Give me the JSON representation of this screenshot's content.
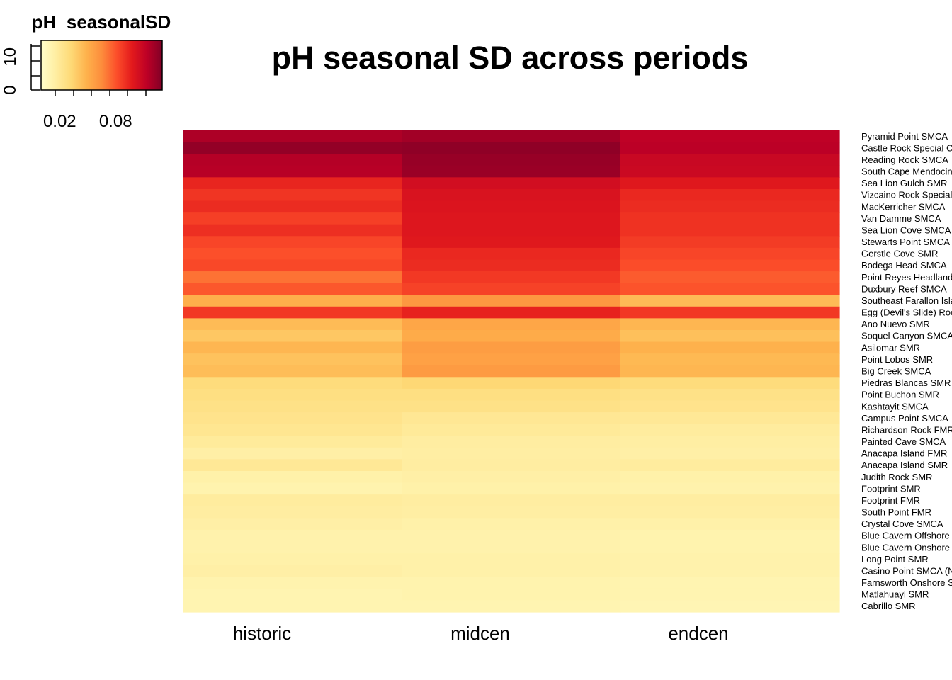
{
  "chart_data": {
    "type": "heatmap",
    "title": "pH seasonal SD across periods",
    "columns": [
      "historic",
      "midcen",
      "endcen"
    ],
    "color_key": {
      "title": "pH_seasonalSD",
      "tick_labels": [
        "0.02",
        "0.08"
      ],
      "tick_values": [
        0.02,
        0.08
      ],
      "range": [
        0.0,
        0.13
      ],
      "histogram_axis_labels": [
        "0",
        "10"
      ],
      "histogram_axis_range": [
        0,
        15
      ],
      "palette": [
        "#FFFFCC",
        "#FFEDA0",
        "#FED976",
        "#FEB24C",
        "#FD8D3C",
        "#FC4E2A",
        "#E31A1C",
        "#BD0026",
        "#800026"
      ]
    },
    "row_labels": [
      "Pyramid Point SMCA",
      "Castle Rock Special Closure",
      "Reading Rock SMCA",
      "South Cape Mendocino SMR",
      "Sea Lion Gulch SMR",
      "Vizcaino Rock Special Closure",
      "MacKerricher SMCA",
      "Van Damme SMCA",
      "Sea Lion Cove SMCA",
      "Stewarts Point SMCA",
      "Gerstle Cove SMR",
      "Bodega Head SMCA",
      "Point Reyes Headlands Special Closure",
      "Duxbury Reef SMCA",
      "Southeast Farallon Island SMR",
      "Egg (Devil's Slide) Rock to Devil's Slide Special Closure",
      "Ano Nuevo SMR",
      "Soquel Canyon SMCA",
      "Asilomar SMR",
      "Point Lobos SMR",
      "Big Creek SMCA",
      "Piedras Blancas SMR",
      "Point Buchon SMR",
      "Kashtayit SMCA",
      "Campus Point SMCA",
      "Richardson Rock FMR",
      "Painted Cave SMCA",
      "Anacapa Island FMR",
      "Anacapa Island SMR",
      "Judith Rock SMR",
      "Footprint SMR",
      "Footprint FMR",
      "South Point FMR",
      "Crystal Cove SMCA",
      "Blue Cavern Offshore SMCA",
      "Blue Cavern Onshore SMCA",
      "Long Point SMR",
      "Casino Point SMCA (No-Take)",
      "Farnsworth Onshore SMCA",
      "Matlahuayl SMR",
      "Cabrillo SMR"
    ],
    "values": {
      "historic": [
        0.118,
        0.125,
        0.116,
        0.115,
        0.094,
        0.089,
        0.092,
        0.086,
        0.091,
        0.084,
        0.081,
        0.083,
        0.072,
        0.079,
        0.05,
        0.088,
        0.045,
        0.04,
        0.047,
        0.042,
        0.044,
        0.03,
        0.028,
        0.026,
        0.024,
        0.022,
        0.018,
        0.014,
        0.02,
        0.013,
        0.011,
        0.017,
        0.016,
        0.014,
        0.012,
        0.012,
        0.013,
        0.014,
        0.011,
        0.01,
        0.01
      ],
      "midcen": [
        0.121,
        0.126,
        0.124,
        0.123,
        0.105,
        0.102,
        0.101,
        0.1,
        0.1,
        0.099,
        0.093,
        0.092,
        0.088,
        0.085,
        0.06,
        0.095,
        0.054,
        0.052,
        0.058,
        0.056,
        0.059,
        0.033,
        0.028,
        0.026,
        0.021,
        0.019,
        0.016,
        0.015,
        0.016,
        0.014,
        0.013,
        0.016,
        0.015,
        0.013,
        0.012,
        0.012,
        0.013,
        0.013,
        0.011,
        0.011,
        0.01
      ],
      "endcen": [
        0.113,
        0.114,
        0.109,
        0.108,
        0.099,
        0.093,
        0.092,
        0.09,
        0.09,
        0.087,
        0.084,
        0.082,
        0.078,
        0.08,
        0.045,
        0.088,
        0.047,
        0.043,
        0.049,
        0.046,
        0.047,
        0.03,
        0.026,
        0.024,
        0.02,
        0.017,
        0.015,
        0.014,
        0.017,
        0.013,
        0.012,
        0.016,
        0.015,
        0.013,
        0.011,
        0.011,
        0.012,
        0.012,
        0.01,
        0.01,
        0.009
      ]
    }
  }
}
